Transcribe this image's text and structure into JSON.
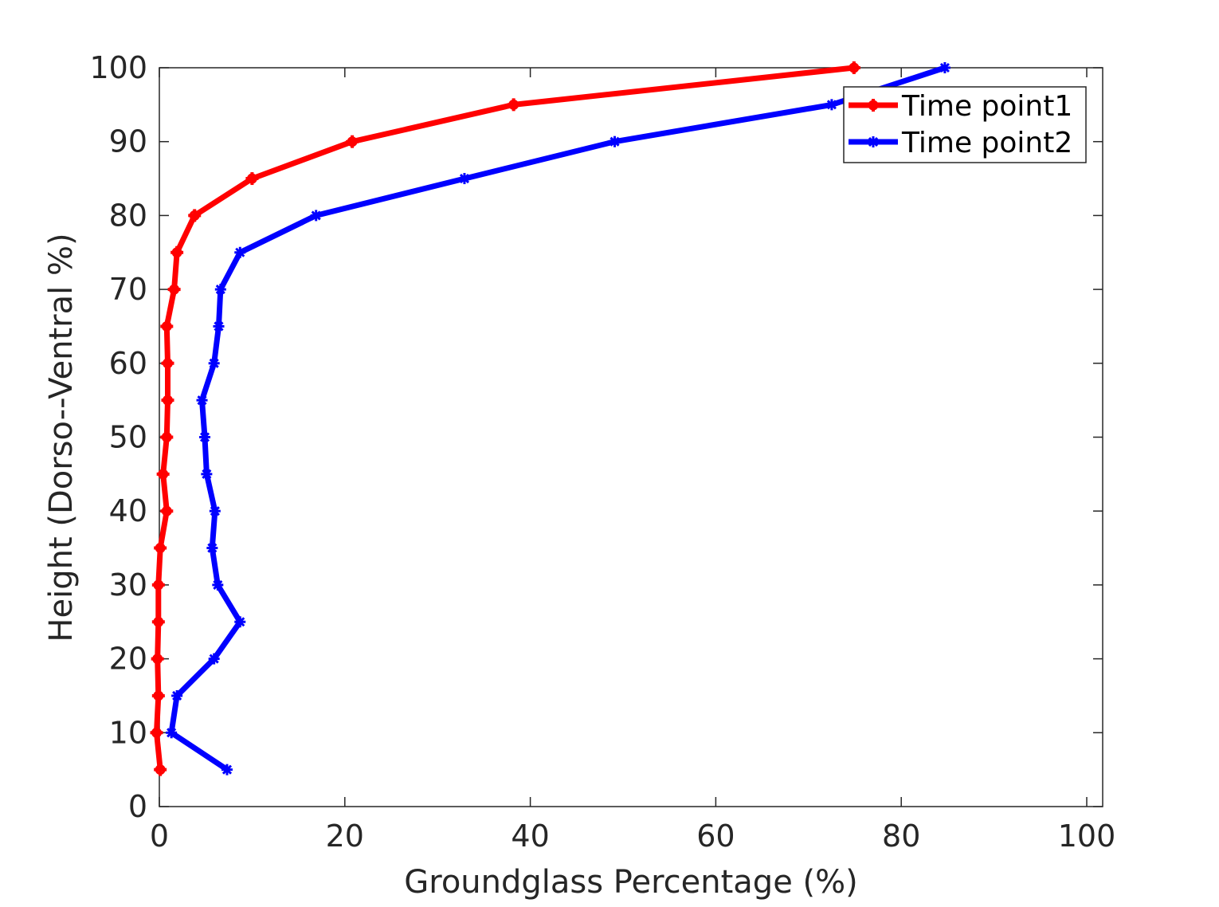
{
  "chart_data": {
    "type": "line",
    "title": "",
    "xlabel": "Groundglass Percentage (%)",
    "ylabel": "Height (Dorso--Ventral %)",
    "xlim": [
      0,
      100
    ],
    "ylim": [
      0,
      100
    ],
    "xticks": [
      "0",
      "20",
      "40",
      "60",
      "80",
      "100"
    ],
    "yticks": [
      "0",
      "10",
      "20",
      "30",
      "40",
      "50",
      "60",
      "70",
      "80",
      "90",
      "100"
    ],
    "grid": false,
    "legend_position": "top-right",
    "series": [
      {
        "name": "Time point1",
        "color": "#ff0000",
        "marker": "plus",
        "points": [
          {
            "x": 0.1,
            "y": 5
          },
          {
            "x": -0.3,
            "y": 10
          },
          {
            "x": -0.1,
            "y": 15
          },
          {
            "x": -0.2,
            "y": 20
          },
          {
            "x": -0.1,
            "y": 25
          },
          {
            "x": -0.1,
            "y": 30
          },
          {
            "x": 0.1,
            "y": 35
          },
          {
            "x": 0.8,
            "y": 40
          },
          {
            "x": 0.4,
            "y": 45
          },
          {
            "x": 0.8,
            "y": 50
          },
          {
            "x": 0.9,
            "y": 55
          },
          {
            "x": 0.9,
            "y": 60
          },
          {
            "x": 0.8,
            "y": 65
          },
          {
            "x": 1.6,
            "y": 70
          },
          {
            "x": 1.9,
            "y": 75
          },
          {
            "x": 3.8,
            "y": 80
          },
          {
            "x": 10.0,
            "y": 85
          },
          {
            "x": 20.8,
            "y": 90
          },
          {
            "x": 38.2,
            "y": 95
          },
          {
            "x": 74.9,
            "y": 100
          }
        ]
      },
      {
        "name": "Time point2",
        "color": "#0000ff",
        "marker": "star",
        "points": [
          {
            "x": 7.3,
            "y": 5
          },
          {
            "x": 1.3,
            "y": 10
          },
          {
            "x": 1.9,
            "y": 15
          },
          {
            "x": 5.9,
            "y": 20
          },
          {
            "x": 8.7,
            "y": 25
          },
          {
            "x": 6.3,
            "y": 30
          },
          {
            "x": 5.7,
            "y": 35
          },
          {
            "x": 6.0,
            "y": 40
          },
          {
            "x": 5.1,
            "y": 45
          },
          {
            "x": 4.9,
            "y": 50
          },
          {
            "x": 4.6,
            "y": 55
          },
          {
            "x": 5.9,
            "y": 60
          },
          {
            "x": 6.4,
            "y": 65
          },
          {
            "x": 6.6,
            "y": 70
          },
          {
            "x": 8.7,
            "y": 75
          },
          {
            "x": 16.9,
            "y": 80
          },
          {
            "x": 32.9,
            "y": 85
          },
          {
            "x": 49.1,
            "y": 90
          },
          {
            "x": 72.5,
            "y": 95
          },
          {
            "x": 84.7,
            "y": 100
          }
        ]
      }
    ]
  }
}
